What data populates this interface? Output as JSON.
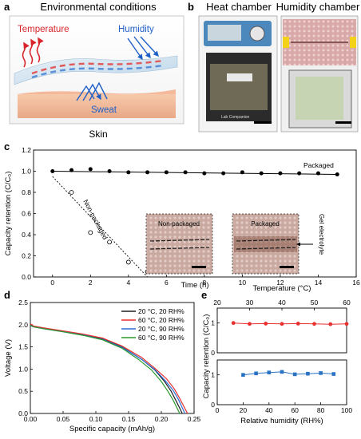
{
  "panel_a": {
    "label": "a",
    "title": "Environmental conditions",
    "temperature": "Temperature",
    "humidity": "Humidity",
    "sweat": "Sweat",
    "skin": "Skin"
  },
  "panel_b": {
    "label": "b",
    "heat_title": "Heat chamber",
    "humidity_title": "Humidity chamber",
    "chamber_brand": "Lab Companion"
  },
  "panel_c": {
    "label": "c",
    "packaged_label": "Packaged",
    "nonpackaged_label": "Non-packaged",
    "inset_nonpackaged": "Non-packaged",
    "inset_packaged": "Packaged",
    "gel_label": "Gel electrolyte"
  },
  "panel_d": {
    "label": "d"
  },
  "panel_e": {
    "label": "e"
  },
  "chart_data": [
    {
      "type": "scatter",
      "panel": "c",
      "xlabel": "Time (h)",
      "ylabel": "Capacity retention (C/C₀)",
      "xlim": [
        -1,
        16
      ],
      "ylim": [
        0.0,
        1.2
      ],
      "xticks": [
        0,
        2,
        4,
        6,
        8,
        10,
        12,
        14,
        16
      ],
      "yticks": [
        0.0,
        0.2,
        0.4,
        0.6,
        0.8,
        1.0,
        1.2
      ],
      "series": [
        {
          "name": "Packaged",
          "marker": "filled-circle",
          "x": [
            0,
            1,
            2,
            3,
            4,
            5,
            6,
            7,
            8,
            9,
            10,
            11,
            12,
            13,
            14,
            15
          ],
          "y": [
            1.0,
            1.01,
            1.02,
            1.0,
            0.99,
            0.99,
            0.99,
            0.99,
            0.98,
            0.98,
            0.99,
            0.98,
            0.98,
            0.98,
            0.98,
            0.97
          ],
          "fit": [
            [
              0,
              1.0
            ],
            [
              15,
              0.97
            ]
          ]
        },
        {
          "name": "Non-packaged",
          "marker": "open-circle",
          "x": [
            1,
            2,
            3,
            4,
            5
          ],
          "y": [
            0.8,
            0.42,
            0.33,
            0.14,
            0.05
          ],
          "fit": [
            [
              0,
              0.95
            ],
            [
              5,
              0.0
            ]
          ]
        }
      ]
    },
    {
      "type": "line",
      "panel": "d",
      "xlabel": "Specific capacity (mAh/g)",
      "ylabel": "Voltage (V)",
      "xlim": [
        0.0,
        0.25
      ],
      "ylim": [
        0.0,
        2.5
      ],
      "xticks": [
        0.0,
        0.05,
        0.1,
        0.15,
        0.2,
        0.25
      ],
      "yticks": [
        0.0,
        0.5,
        1.0,
        1.5,
        2.0,
        2.5
      ],
      "series": [
        {
          "name": "20 °C, 20 RH%",
          "color": "#1f1f1f",
          "x": [
            0,
            0.005,
            0.02,
            0.05,
            0.08,
            0.11,
            0.14,
            0.17,
            0.19,
            0.205,
            0.215,
            0.222,
            0.228,
            0.232
          ],
          "y": [
            2.0,
            1.96,
            1.92,
            1.85,
            1.78,
            1.68,
            1.5,
            1.22,
            0.98,
            0.72,
            0.5,
            0.3,
            0.12,
            0.0
          ]
        },
        {
          "name": "60 °C, 20 RH%",
          "color": "#e8302f",
          "x": [
            0,
            0.005,
            0.02,
            0.05,
            0.08,
            0.11,
            0.14,
            0.17,
            0.19,
            0.208,
            0.22,
            0.228,
            0.235,
            0.24
          ],
          "y": [
            2.02,
            1.97,
            1.93,
            1.86,
            1.79,
            1.7,
            1.52,
            1.26,
            1.02,
            0.78,
            0.55,
            0.34,
            0.14,
            0.0
          ]
        },
        {
          "name": "20 °C, 90 RH%",
          "color": "#2d6fd6",
          "x": [
            0,
            0.005,
            0.02,
            0.05,
            0.08,
            0.11,
            0.14,
            0.17,
            0.19,
            0.206,
            0.218,
            0.226,
            0.232,
            0.236
          ],
          "y": [
            1.98,
            1.95,
            1.91,
            1.84,
            1.77,
            1.67,
            1.49,
            1.22,
            0.99,
            0.74,
            0.52,
            0.32,
            0.13,
            0.0
          ]
        },
        {
          "name": "60 °C, 90 RH%",
          "color": "#2a9a2a",
          "x": [
            0,
            0.005,
            0.02,
            0.05,
            0.08,
            0.11,
            0.14,
            0.165,
            0.185,
            0.2,
            0.21,
            0.218,
            0.224,
            0.228
          ],
          "y": [
            1.99,
            1.95,
            1.91,
            1.84,
            1.76,
            1.66,
            1.47,
            1.22,
            0.98,
            0.72,
            0.5,
            0.3,
            0.12,
            0.0
          ]
        }
      ]
    },
    {
      "type": "scatter",
      "panel": "e-top",
      "xlabel": "Temperature (°C)",
      "ylabel": "Capacity retention (C/C₀)",
      "xlim": [
        20,
        60
      ],
      "ylim": [
        0,
        1.5
      ],
      "xticks": [
        20,
        30,
        40,
        50,
        60
      ],
      "yticks": [
        0,
        1
      ],
      "series": [
        {
          "name": "Temperature",
          "color": "#e8302f",
          "marker": "circle",
          "x": [
            25,
            30,
            35,
            40,
            45,
            50,
            55,
            60
          ],
          "y": [
            1.0,
            0.97,
            0.98,
            0.97,
            0.98,
            0.97,
            0.96,
            0.97
          ]
        }
      ]
    },
    {
      "type": "scatter",
      "panel": "e-bottom",
      "xlabel": "Relative humidity (RH%)",
      "ylabel": "Capacity retention (C/C₀)",
      "xlim": [
        0,
        100
      ],
      "ylim": [
        0,
        1.5
      ],
      "xticks": [
        0,
        20,
        40,
        60,
        80,
        100
      ],
      "yticks": [
        0,
        1
      ],
      "series": [
        {
          "name": "Relative humidity",
          "color": "#2a73c4",
          "marker": "square",
          "x": [
            20,
            30,
            40,
            50,
            60,
            70,
            80,
            90
          ],
          "y": [
            1.0,
            1.05,
            1.08,
            1.1,
            1.02,
            1.04,
            1.06,
            1.03
          ]
        }
      ]
    }
  ]
}
